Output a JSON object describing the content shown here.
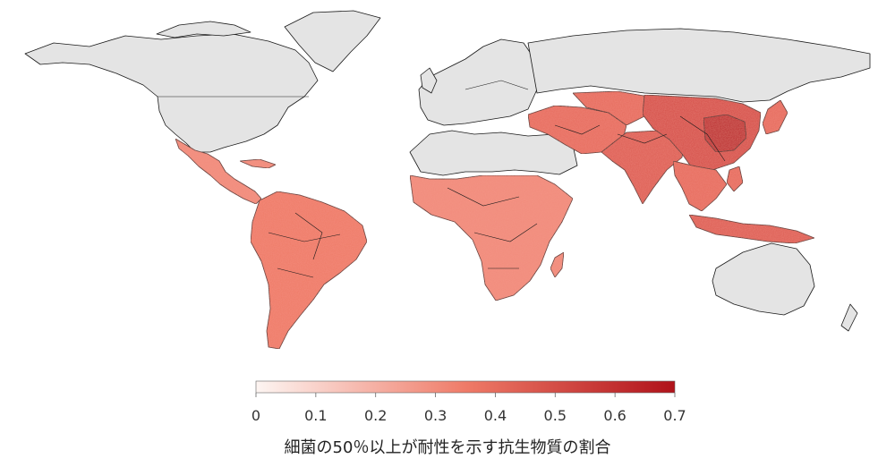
{
  "map": {
    "no_data_color": "#e4e4e4",
    "border_color": "#1a1a1a",
    "regions": [
      {
        "name": "north-america",
        "status": "no-data"
      },
      {
        "name": "greenland",
        "status": "no-data"
      },
      {
        "name": "europe",
        "status": "no-data"
      },
      {
        "name": "russia",
        "status": "no-data"
      },
      {
        "name": "australia",
        "status": "no-data"
      },
      {
        "name": "sahara-arabia",
        "status": "no-data"
      },
      {
        "name": "mexico-central-america",
        "status": "data",
        "value": 0.3
      },
      {
        "name": "south-america",
        "status": "data",
        "value": 0.35
      },
      {
        "name": "africa",
        "status": "data",
        "value": 0.3
      },
      {
        "name": "middle-east",
        "status": "data",
        "value": 0.4
      },
      {
        "name": "south-asia",
        "status": "data",
        "value": 0.45
      },
      {
        "name": "china",
        "status": "data",
        "value": 0.5
      },
      {
        "name": "east-china",
        "status": "data",
        "value": 0.65
      },
      {
        "name": "southeast-asia",
        "status": "data",
        "value": 0.4
      },
      {
        "name": "indonesia",
        "status": "data",
        "value": 0.45
      }
    ]
  },
  "legend": {
    "min": 0,
    "max": 0.7,
    "color_low": "#fdf5f2",
    "color_mid": "#ef7b68",
    "color_high": "#b0121a",
    "ticks": [
      "0",
      "0.1",
      "0.2",
      "0.3",
      "0.4",
      "0.5",
      "0.6",
      "0.7"
    ],
    "title": "細菌の50％以上が耐性を示す抗生物質の割合"
  }
}
